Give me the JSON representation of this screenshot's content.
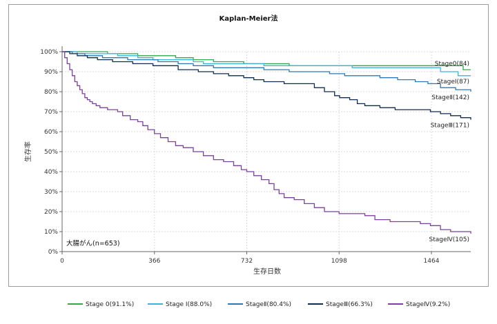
{
  "chart_data": {
    "type": "line",
    "title": "Kaplan-Meier法",
    "xlabel": "生存日数",
    "ylabel": "生存率",
    "xlim": [
      0,
      1620
    ],
    "ylim": [
      0,
      100
    ],
    "x_ticks": [
      0,
      366,
      732,
      1098,
      1464
    ],
    "x_tick_labels": [
      "0",
      "366",
      "732",
      "1098",
      "1464"
    ],
    "y_ticks": [
      0,
      10,
      20,
      30,
      40,
      50,
      60,
      70,
      80,
      90,
      100
    ],
    "y_tick_labels": [
      "0%",
      "10%",
      "20%",
      "30%",
      "40%",
      "50%",
      "60%",
      "70%",
      "80%",
      "90%",
      "100%"
    ],
    "grid": true,
    "legend_position": "bottom",
    "annotation": "大腸がん(n=653)",
    "series": [
      {
        "name": "Stage 0(91.1%)",
        "end_label": "Stage0(84)",
        "color": "#2ea84a",
        "points": [
          [
            0,
            100
          ],
          [
            150,
            100
          ],
          [
            180,
            99
          ],
          [
            300,
            98
          ],
          [
            450,
            97
          ],
          [
            520,
            96
          ],
          [
            600,
            95
          ],
          [
            720,
            94
          ],
          [
            900,
            93
          ],
          [
            1100,
            93
          ],
          [
            1300,
            93
          ],
          [
            1480,
            93
          ],
          [
            1560,
            93
          ],
          [
            1590,
            91
          ],
          [
            1620,
            91
          ]
        ]
      },
      {
        "name": "Stage Ⅰ(88.0%)",
        "end_label": "StageⅠ(87)",
        "color": "#35b6d8",
        "points": [
          [
            0,
            100
          ],
          [
            60,
            99
          ],
          [
            120,
            99
          ],
          [
            220,
            98
          ],
          [
            300,
            97
          ],
          [
            360,
            96
          ],
          [
            520,
            95
          ],
          [
            560,
            94
          ],
          [
            700,
            94
          ],
          [
            800,
            93
          ],
          [
            1098,
            93
          ],
          [
            1150,
            92
          ],
          [
            1300,
            92
          ],
          [
            1450,
            92
          ],
          [
            1500,
            90
          ],
          [
            1570,
            88
          ],
          [
            1620,
            88
          ]
        ]
      },
      {
        "name": "StageⅡ(80.4%)",
        "end_label": "StageⅡ(142)",
        "color": "#2a78b8",
        "points": [
          [
            0,
            100
          ],
          [
            40,
            99
          ],
          [
            90,
            98
          ],
          [
            160,
            97
          ],
          [
            260,
            96
          ],
          [
            380,
            95
          ],
          [
            460,
            94
          ],
          [
            520,
            93
          ],
          [
            600,
            92
          ],
          [
            700,
            92
          ],
          [
            800,
            91
          ],
          [
            900,
            90
          ],
          [
            1000,
            90
          ],
          [
            1060,
            89
          ],
          [
            1120,
            88
          ],
          [
            1200,
            88
          ],
          [
            1260,
            87
          ],
          [
            1330,
            86
          ],
          [
            1400,
            85
          ],
          [
            1450,
            84
          ],
          [
            1500,
            82
          ],
          [
            1560,
            81
          ],
          [
            1620,
            80
          ]
        ]
      },
      {
        "name": "StageⅢ(66.3%)",
        "end_label": "StageⅢ(171)",
        "color": "#0f2a50",
        "points": [
          [
            0,
            100
          ],
          [
            30,
            99
          ],
          [
            60,
            98
          ],
          [
            100,
            97
          ],
          [
            140,
            96
          ],
          [
            200,
            95
          ],
          [
            280,
            94
          ],
          [
            360,
            93
          ],
          [
            460,
            91
          ],
          [
            540,
            90
          ],
          [
            600,
            89
          ],
          [
            660,
            88
          ],
          [
            720,
            87
          ],
          [
            760,
            86
          ],
          [
            800,
            85
          ],
          [
            880,
            84
          ],
          [
            960,
            84
          ],
          [
            1000,
            82
          ],
          [
            1040,
            80
          ],
          [
            1080,
            78
          ],
          [
            1100,
            77
          ],
          [
            1140,
            76
          ],
          [
            1170,
            74
          ],
          [
            1200,
            73
          ],
          [
            1260,
            72
          ],
          [
            1320,
            71
          ],
          [
            1400,
            71
          ],
          [
            1460,
            70
          ],
          [
            1500,
            69
          ],
          [
            1540,
            68
          ],
          [
            1580,
            67
          ],
          [
            1620,
            66
          ]
        ]
      },
      {
        "name": "StageⅣ(9.2%)",
        "end_label": "StageⅣ(105)",
        "color": "#7b3fa0",
        "points": [
          [
            0,
            100
          ],
          [
            10,
            97
          ],
          [
            20,
            94
          ],
          [
            30,
            91
          ],
          [
            40,
            88
          ],
          [
            50,
            85
          ],
          [
            60,
            83
          ],
          [
            70,
            81
          ],
          [
            80,
            79
          ],
          [
            90,
            77
          ],
          [
            100,
            76
          ],
          [
            110,
            75
          ],
          [
            120,
            74
          ],
          [
            135,
            73
          ],
          [
            150,
            72
          ],
          [
            180,
            71
          ],
          [
            220,
            70
          ],
          [
            240,
            68
          ],
          [
            270,
            66
          ],
          [
            300,
            65
          ],
          [
            320,
            63
          ],
          [
            340,
            61
          ],
          [
            366,
            59
          ],
          [
            390,
            57
          ],
          [
            420,
            55
          ],
          [
            450,
            53
          ],
          [
            480,
            52
          ],
          [
            520,
            50
          ],
          [
            560,
            48
          ],
          [
            600,
            46
          ],
          [
            640,
            45
          ],
          [
            680,
            43
          ],
          [
            710,
            41
          ],
          [
            732,
            40
          ],
          [
            760,
            38
          ],
          [
            790,
            36
          ],
          [
            820,
            34
          ],
          [
            840,
            31
          ],
          [
            860,
            29
          ],
          [
            880,
            27
          ],
          [
            920,
            26
          ],
          [
            960,
            24
          ],
          [
            1000,
            22
          ],
          [
            1040,
            20
          ],
          [
            1098,
            19
          ],
          [
            1150,
            19
          ],
          [
            1200,
            18
          ],
          [
            1240,
            16
          ],
          [
            1300,
            15
          ],
          [
            1380,
            15
          ],
          [
            1420,
            14
          ],
          [
            1460,
            13
          ],
          [
            1500,
            11
          ],
          [
            1540,
            10
          ],
          [
            1620,
            9
          ]
        ]
      }
    ]
  }
}
